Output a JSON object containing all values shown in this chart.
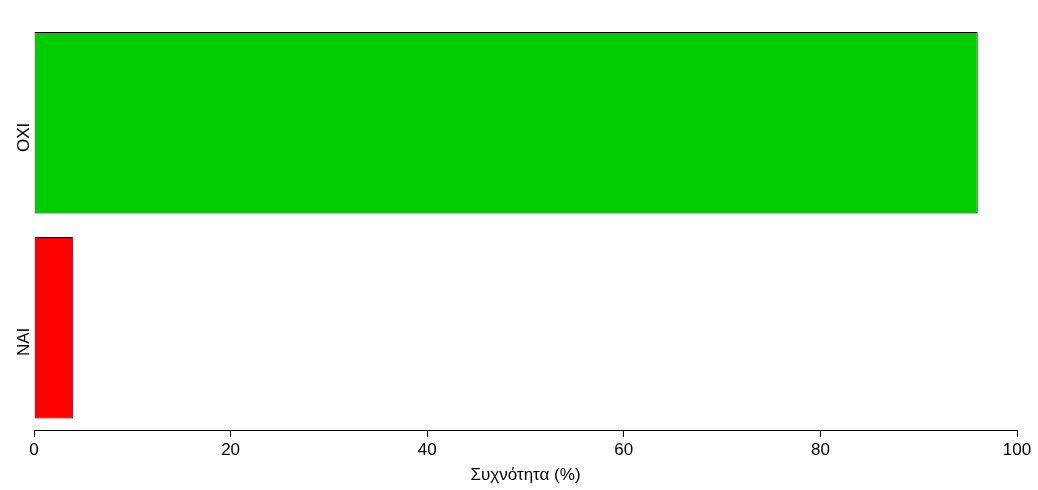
{
  "chart_data": {
    "type": "bar",
    "orientation": "horizontal",
    "categories": [
      "ΟΧΙ",
      "ΝΑΙ"
    ],
    "values": [
      96,
      4
    ],
    "colors": [
      "#00cc00",
      "#ff0000"
    ],
    "xlabel": "Συχνότητα (%)",
    "xlim": [
      0,
      100
    ],
    "xticks": [
      0,
      20,
      40,
      60,
      80,
      100
    ],
    "grid": false,
    "legend": false
  }
}
